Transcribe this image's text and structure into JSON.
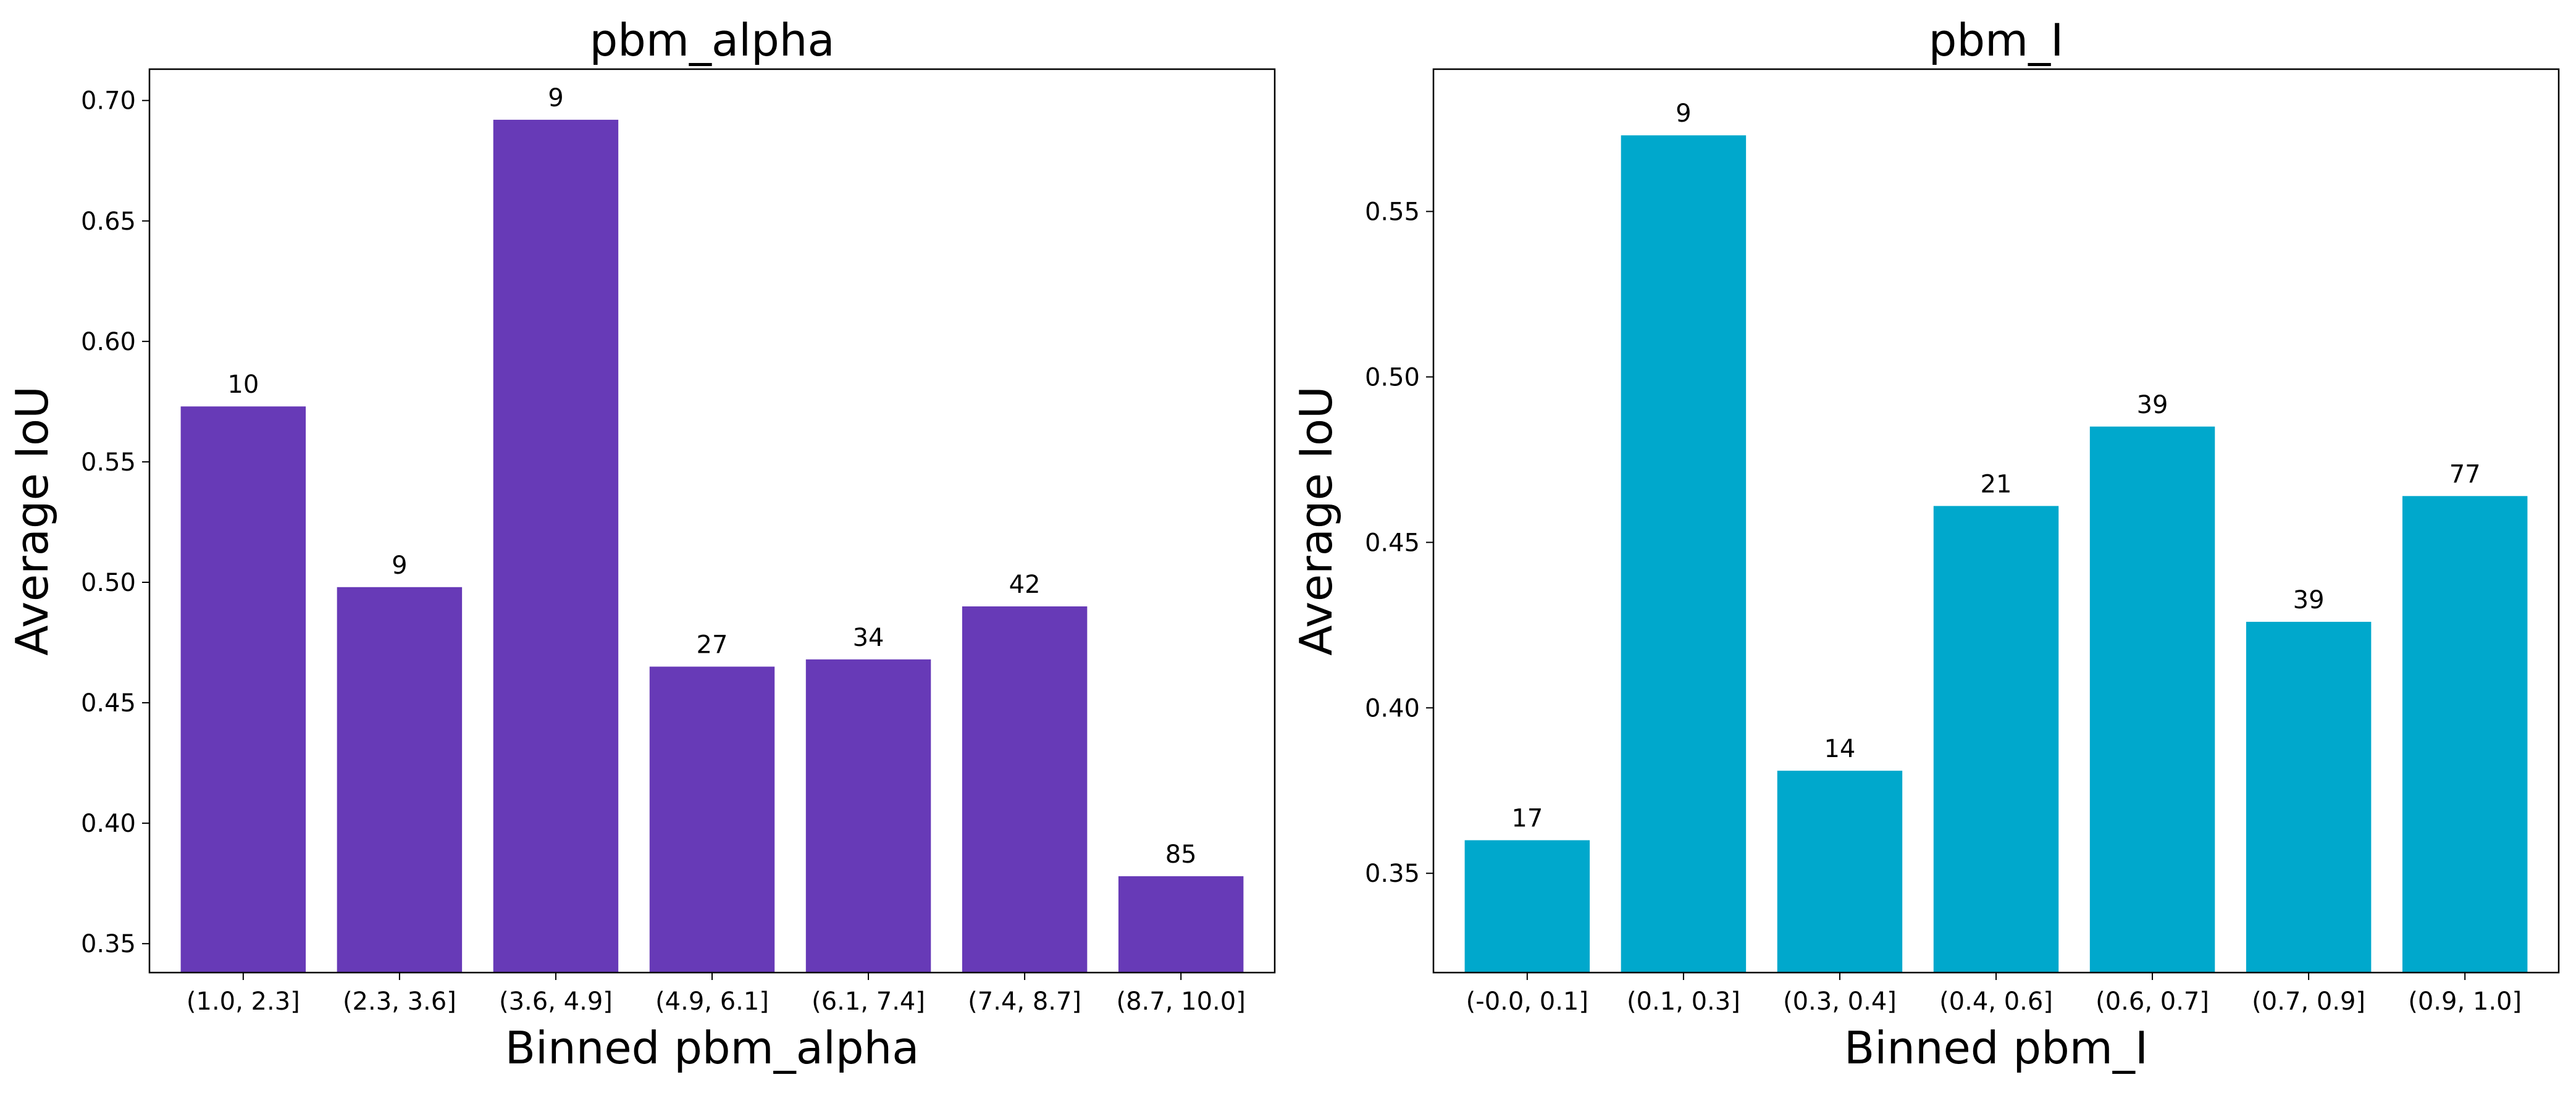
{
  "chart_data": [
    {
      "type": "bar",
      "title": "pbm_alpha",
      "xlabel": "Binned pbm_alpha",
      "ylabel": "Average IoU",
      "categories": [
        "(1.0, 2.3]",
        "(2.3, 3.6]",
        "(3.6, 4.9]",
        "(4.9, 6.1]",
        "(6.1, 7.4]",
        "(7.4, 8.7]",
        "(8.7, 10.0]"
      ],
      "values": [
        0.573,
        0.498,
        0.692,
        0.465,
        0.468,
        0.49,
        0.378
      ],
      "counts": [
        "10",
        "9",
        "9",
        "27",
        "34",
        "42",
        "85"
      ],
      "ylim": [
        0.338,
        0.713
      ],
      "yticks": [
        "0.35",
        "0.40",
        "0.45",
        "0.50",
        "0.55",
        "0.60",
        "0.65",
        "0.70"
      ],
      "color": "#673ab7",
      "grid": false
    },
    {
      "type": "bar",
      "title": "pbm_I",
      "xlabel": "Binned pbm_I",
      "ylabel": "Average IoU",
      "categories": [
        "(-0.0, 0.1]",
        "(0.1, 0.3]",
        "(0.3, 0.4]",
        "(0.4, 0.6]",
        "(0.6, 0.7]",
        "(0.7, 0.9]",
        "(0.9, 1.0]"
      ],
      "values": [
        0.36,
        0.573,
        0.381,
        0.461,
        0.485,
        0.426,
        0.464
      ],
      "counts": [
        "17",
        "9",
        "14",
        "21",
        "39",
        "39",
        "77"
      ],
      "ylim": [
        0.32,
        0.593
      ],
      "yticks": [
        "0.35",
        "0.40",
        "0.45",
        "0.50",
        "0.55"
      ],
      "color": "#00a8cc",
      "grid": false
    }
  ]
}
